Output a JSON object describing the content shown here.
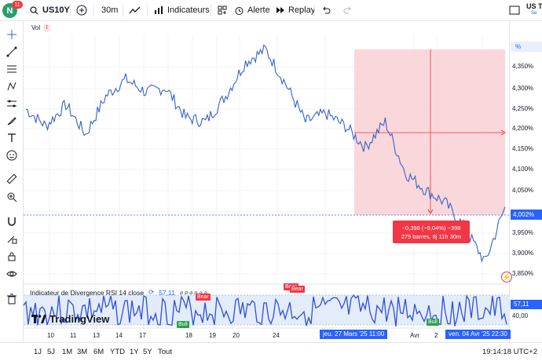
{
  "toolbar": {
    "avatar_letter": "N",
    "notifications": "11",
    "symbol": "US10Y",
    "interval": "30m",
    "indicators_label": "Indicateurs",
    "alert_label": "Alerte",
    "replay_label": "Replay",
    "right_symbol": "US T",
    "right_sub": "Se"
  },
  "left_tools": [
    "crosshair-icon",
    "trendline-icon",
    "fib-icon",
    "pattern-icon",
    "measure-icon",
    "brush-icon",
    "text-icon",
    "emoji-icon",
    "ruler-icon",
    "zoom-icon",
    "magnet-icon",
    "lock-draw-icon",
    "lock-icon",
    "eye-icon",
    "trash-icon"
  ],
  "chart": {
    "volume_label": "Vol",
    "percent_label": "%",
    "current_price": "4,002%",
    "price_ticks": [
      "4,350%",
      "4,300%",
      "4,250%",
      "4,200%",
      "4,150%",
      "4,100%",
      "4,050%",
      "3,950%",
      "3,900%",
      "3,850%"
    ],
    "measure_line1": "−0,398 (−9,04%) −398",
    "measure_line2": "279 barres, 8j 11h 30m",
    "logo_text": "TradingView"
  },
  "rsi": {
    "label": "Indicateur de Divergence RSI 14 close",
    "value": "57,11",
    "current": "57,11",
    "level_40": "40,00",
    "bull_label": "Bull",
    "bear_label": "Bear"
  },
  "x_axis": {
    "ticks": [
      "10",
      "11",
      "13",
      "14",
      "17",
      "18",
      "19",
      "20",
      "24",
      "Avr",
      "2"
    ],
    "highlight_start": "jeu. 27 Mars '25   11:00",
    "highlight_end": "ven. 04 Avr '25   22:30"
  },
  "ranges": [
    "1J",
    "5J",
    "1M",
    "3M",
    "6M",
    "YTD",
    "1Y",
    "5Y",
    "Tout"
  ],
  "clock": "19:14:18 UTC+2",
  "colors": {
    "line": "#2962ff",
    "series": "#3563c9",
    "measure_fill": "#f8c9cf",
    "negative": "#f23645",
    "bull": "#2e9e4a"
  },
  "chart_data": {
    "type": "line",
    "title": "US10Y",
    "ylim": [
      3.85,
      4.37
    ],
    "y_unit": "%",
    "approx_points": [
      4.23,
      4.19,
      4.24,
      4.17,
      4.26,
      4.3,
      4.27,
      4.28,
      4.21,
      4.2,
      4.26,
      4.34,
      4.37,
      4.29,
      4.2,
      4.22,
      4.19,
      4.14,
      4.2,
      4.08,
      4.04,
      4.01,
      3.95,
      3.87,
      4.0
    ],
    "measure": {
      "change": "−0,398",
      "percent": "−9,04%",
      "bars": "279"
    }
  }
}
